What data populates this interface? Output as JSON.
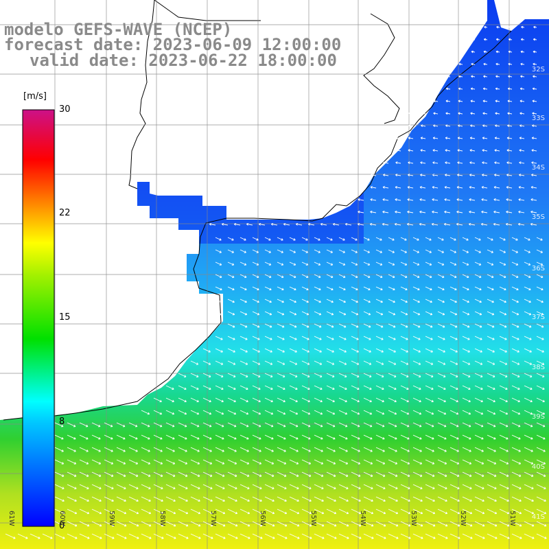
{
  "title": {
    "line1": "modelo GEFS-WAVE (NCEP)",
    "line2": "forecast date: 2023-06-09 12:00:00",
    "line3": "valid date: 2023-06-22 18:00:00"
  },
  "colorbar": {
    "unit": "[m/s]",
    "ticks": [
      "30",
      "22",
      "15",
      "8",
      "0"
    ],
    "colors": [
      "#0000ff",
      "#00aaff",
      "#00ffff",
      "#00dd00",
      "#ffff00",
      "#ff8800",
      "#ff0000",
      "#cc1177"
    ]
  },
  "map": {
    "lat_labels": [
      "32S",
      "33S",
      "34S",
      "35S",
      "36S",
      "37S",
      "38S",
      "39S",
      "40S",
      "41S"
    ],
    "lon_labels": [
      "61W",
      "60W",
      "59W",
      "58W",
      "57W",
      "56W",
      "55W",
      "54W",
      "53W",
      "52W",
      "51W"
    ],
    "land_color": "#ffffff",
    "grid_color": "#888888"
  }
}
